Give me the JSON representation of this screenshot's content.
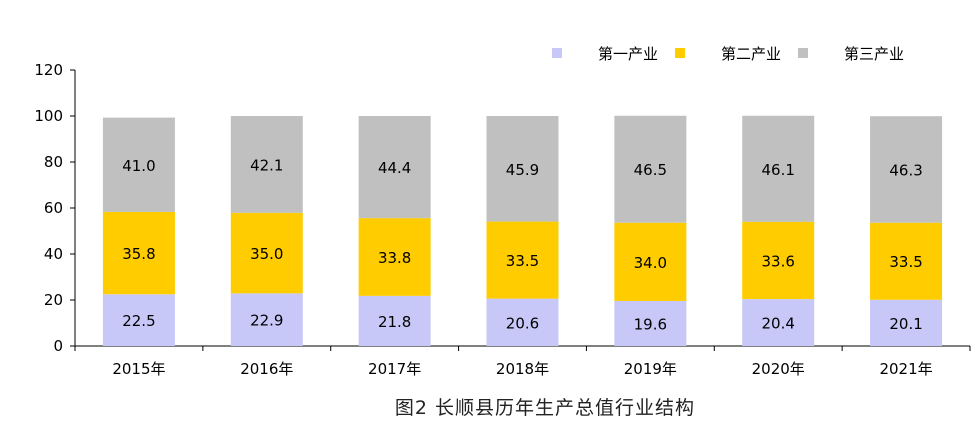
{
  "chart_data": {
    "type": "bar",
    "stacked": true,
    "title": "图2 长顺县历年生产总值行业结构",
    "xlabel": "",
    "ylabel": "",
    "ylim": [
      0,
      120
    ],
    "yticks": [
      0,
      20,
      40,
      60,
      80,
      100,
      120
    ],
    "grid": false,
    "legend_position": "top-right",
    "categories": [
      "2015年",
      "2016年",
      "2017年",
      "2018年",
      "2019年",
      "2020年",
      "2021年"
    ],
    "series": [
      {
        "name": "第一产业",
        "color": "#c8c8f8",
        "values": [
          22.5,
          22.9,
          21.8,
          20.6,
          19.6,
          20.4,
          20.1
        ]
      },
      {
        "name": "第二产业",
        "color": "#ffcc00",
        "values": [
          35.8,
          35.0,
          33.8,
          33.5,
          34.0,
          33.6,
          33.5
        ]
      },
      {
        "name": "第三产业",
        "color": "#c0c0c0",
        "values": [
          41.0,
          42.1,
          44.4,
          45.9,
          46.5,
          46.1,
          46.3
        ]
      }
    ]
  }
}
